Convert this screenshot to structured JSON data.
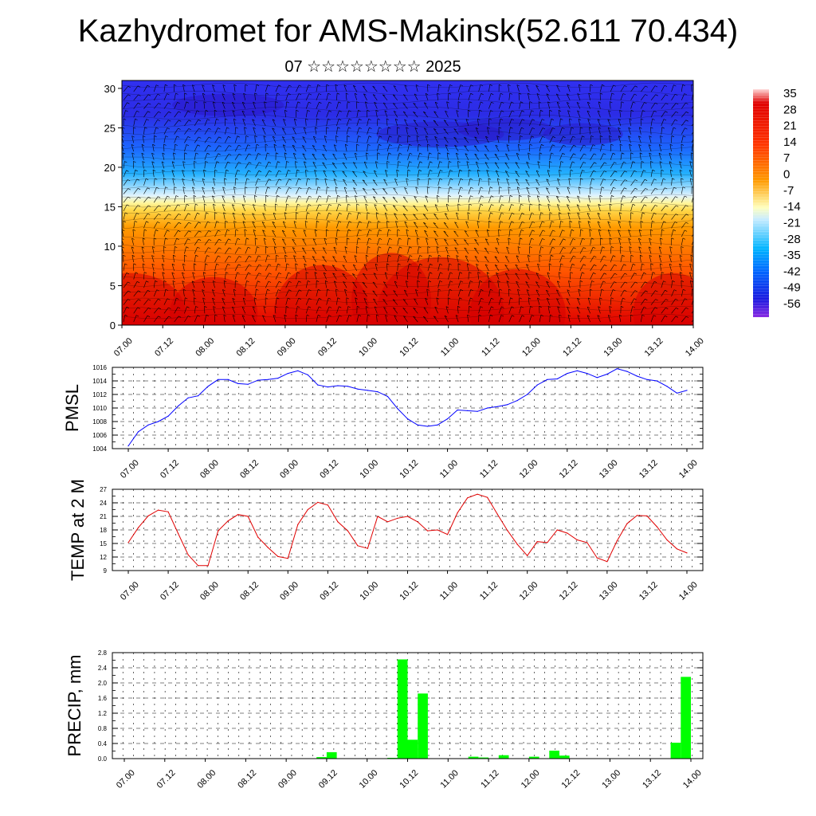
{
  "title": "Kazhydromet for AMS-Makinsk(52.611 70.434)",
  "subtitle": "07 ☆☆☆☆☆☆☆☆ 2025",
  "chart_data": [
    {
      "type": "heatmap",
      "name": "cross-section",
      "title": "",
      "y_ticks": [
        "0",
        "5",
        "10",
        "15",
        "20",
        "25",
        "30"
      ],
      "x_ticks": [
        "07.00",
        "07.12",
        "08.00",
        "08.12",
        "09.00",
        "09.12",
        "10.00",
        "10.12",
        "11.00",
        "11.12",
        "12.00",
        "12.12",
        "13.00",
        "13.12",
        "14.00"
      ],
      "ylim": [
        0,
        31
      ],
      "colorbar_ticks": [
        "35",
        "28",
        "21",
        "14",
        "7",
        "0",
        "-7",
        "-14",
        "-21",
        "-28",
        "-35",
        "-42",
        "-49",
        "-56"
      ],
      "colorbar_range": [
        -63,
        40
      ],
      "colors": [
        "#ffd6d6",
        "#e00000",
        "#ff5a00",
        "#ffb000",
        "#fff07a",
        "#bde6ff",
        "#00aaff",
        "#1a5dff",
        "#2a1ae0",
        "#7a26e6"
      ],
      "overlay": "wind barbs"
    },
    {
      "type": "line",
      "name": "pmsl",
      "ylabel": "PMSL",
      "color": "#0000ff",
      "ylim": [
        1004,
        1016
      ],
      "y_ticks": [
        "1004",
        "1006",
        "1008",
        "1010",
        "1012",
        "1014",
        "1016"
      ],
      "x_ticks": [
        "07.00",
        "07.12",
        "08.00",
        "08.12",
        "09.00",
        "09.12",
        "10.00",
        "10.12",
        "11.00",
        "11.12",
        "12.00",
        "12.12",
        "13.00",
        "13.12",
        "14.00"
      ],
      "x": [
        0.0,
        0.25,
        0.5,
        0.75,
        1.0,
        1.25,
        1.5,
        1.75,
        2.0,
        2.25,
        2.5,
        2.75,
        3.0,
        3.25,
        3.5,
        3.75,
        4.0,
        4.25,
        4.5,
        4.75,
        5.0,
        5.25,
        5.5,
        5.75,
        6.0,
        6.25,
        6.5,
        6.75,
        7.0,
        7.25,
        7.5,
        7.75,
        8.0,
        8.25,
        8.5,
        8.75,
        9.0,
        9.25,
        9.5,
        9.75,
        10.0,
        10.25,
        10.5,
        10.75,
        11.0,
        11.25,
        11.5,
        11.75,
        12.0,
        12.25,
        12.5,
        12.75,
        13.0,
        13.25,
        13.5,
        13.75,
        14.0
      ],
      "values": [
        1004.4,
        1006.5,
        1007.5,
        1008.0,
        1008.8,
        1010.3,
        1011.5,
        1011.8,
        1013.2,
        1014.2,
        1014.2,
        1013.6,
        1013.5,
        1014.1,
        1014.2,
        1014.4,
        1015.1,
        1015.5,
        1014.9,
        1013.4,
        1013.1,
        1013.3,
        1013.2,
        1012.8,
        1012.6,
        1012.4,
        1011.7,
        1009.9,
        1008.4,
        1007.5,
        1007.3,
        1007.5,
        1008.4,
        1009.7,
        1009.6,
        1009.5,
        1010.0,
        1010.2,
        1010.5,
        1011.1,
        1012.0,
        1013.4,
        1014.2,
        1014.3,
        1015.1,
        1015.5,
        1015.1,
        1014.5,
        1015.0,
        1015.8,
        1015.4,
        1014.7,
        1014.2,
        1014.0,
        1013.2,
        1012.2,
        1012.6
      ]
    },
    {
      "type": "line",
      "name": "temp",
      "ylabel": "TEMP at 2 M",
      "color": "#e00000",
      "ylim": [
        9,
        27
      ],
      "y_ticks": [
        "9",
        "12",
        "15",
        "18",
        "21",
        "24",
        "27"
      ],
      "x_ticks": [
        "07.00",
        "07.12",
        "08.00",
        "08.12",
        "09.00",
        "09.12",
        "10.00",
        "10.12",
        "11.00",
        "11.12",
        "12.00",
        "12.12",
        "13.00",
        "13.12",
        "14.00"
      ],
      "x": [
        0.0,
        0.25,
        0.5,
        0.75,
        1.0,
        1.25,
        1.5,
        1.75,
        2.0,
        2.25,
        2.5,
        2.75,
        3.0,
        3.25,
        3.5,
        3.75,
        4.0,
        4.25,
        4.5,
        4.75,
        5.0,
        5.25,
        5.5,
        5.75,
        6.0,
        6.25,
        6.5,
        6.75,
        7.0,
        7.25,
        7.5,
        7.75,
        8.0,
        8.25,
        8.5,
        8.75,
        9.0,
        9.25,
        9.5,
        9.75,
        10.0,
        10.25,
        10.5,
        10.75,
        11.0,
        11.25,
        11.5,
        11.75,
        12.0,
        12.25,
        12.5,
        12.75,
        13.0,
        13.25,
        13.5,
        13.75,
        14.0
      ],
      "values": [
        15.2,
        18.5,
        21.1,
        22.4,
        22.0,
        17.2,
        12.5,
        10.1,
        10.1,
        17.8,
        20.0,
        21.4,
        21.0,
        16.4,
        14.1,
        12.1,
        11.7,
        19.2,
        22.5,
        24.1,
        23.5,
        19.8,
        17.8,
        14.5,
        13.9,
        21.0,
        19.8,
        20.6,
        21.0,
        19.8,
        17.8,
        18.0,
        17.0,
        21.8,
        25.1,
        25.9,
        25.2,
        21.5,
        17.9,
        14.8,
        12.3,
        15.4,
        15.2,
        18.0,
        17.3,
        15.8,
        15.2,
        11.8,
        11.0,
        15.6,
        19.4,
        21.2,
        21.1,
        18.7,
        15.8,
        13.8,
        12.9
      ]
    },
    {
      "type": "bar",
      "name": "precip",
      "ylabel": "PRECIP, mm",
      "color": "#00ff00",
      "ylim": [
        0,
        2.8
      ],
      "y_ticks": [
        "0.0",
        "0.4",
        "0.8",
        "1.2",
        "1.6",
        "2.0",
        "2.4",
        "2.8"
      ],
      "x_ticks": [
        "07.00",
        "07.12",
        "08.00",
        "08.12",
        "09.00",
        "09.12",
        "10.00",
        "10.12",
        "11.00",
        "11.12",
        "12.00",
        "12.12",
        "13.00",
        "13.12",
        "14.00"
      ],
      "x": [
        5.0,
        5.25,
        6.75,
        7.0,
        7.25,
        7.5,
        8.75,
        9.0,
        9.5,
        10.25,
        10.75,
        11.0,
        13.75,
        14.0
      ],
      "values": [
        0.04,
        0.17,
        0.02,
        2.62,
        0.5,
        1.72,
        0.05,
        0.03,
        0.09,
        0.05,
        0.21,
        0.08,
        0.42,
        2.16
      ]
    }
  ]
}
